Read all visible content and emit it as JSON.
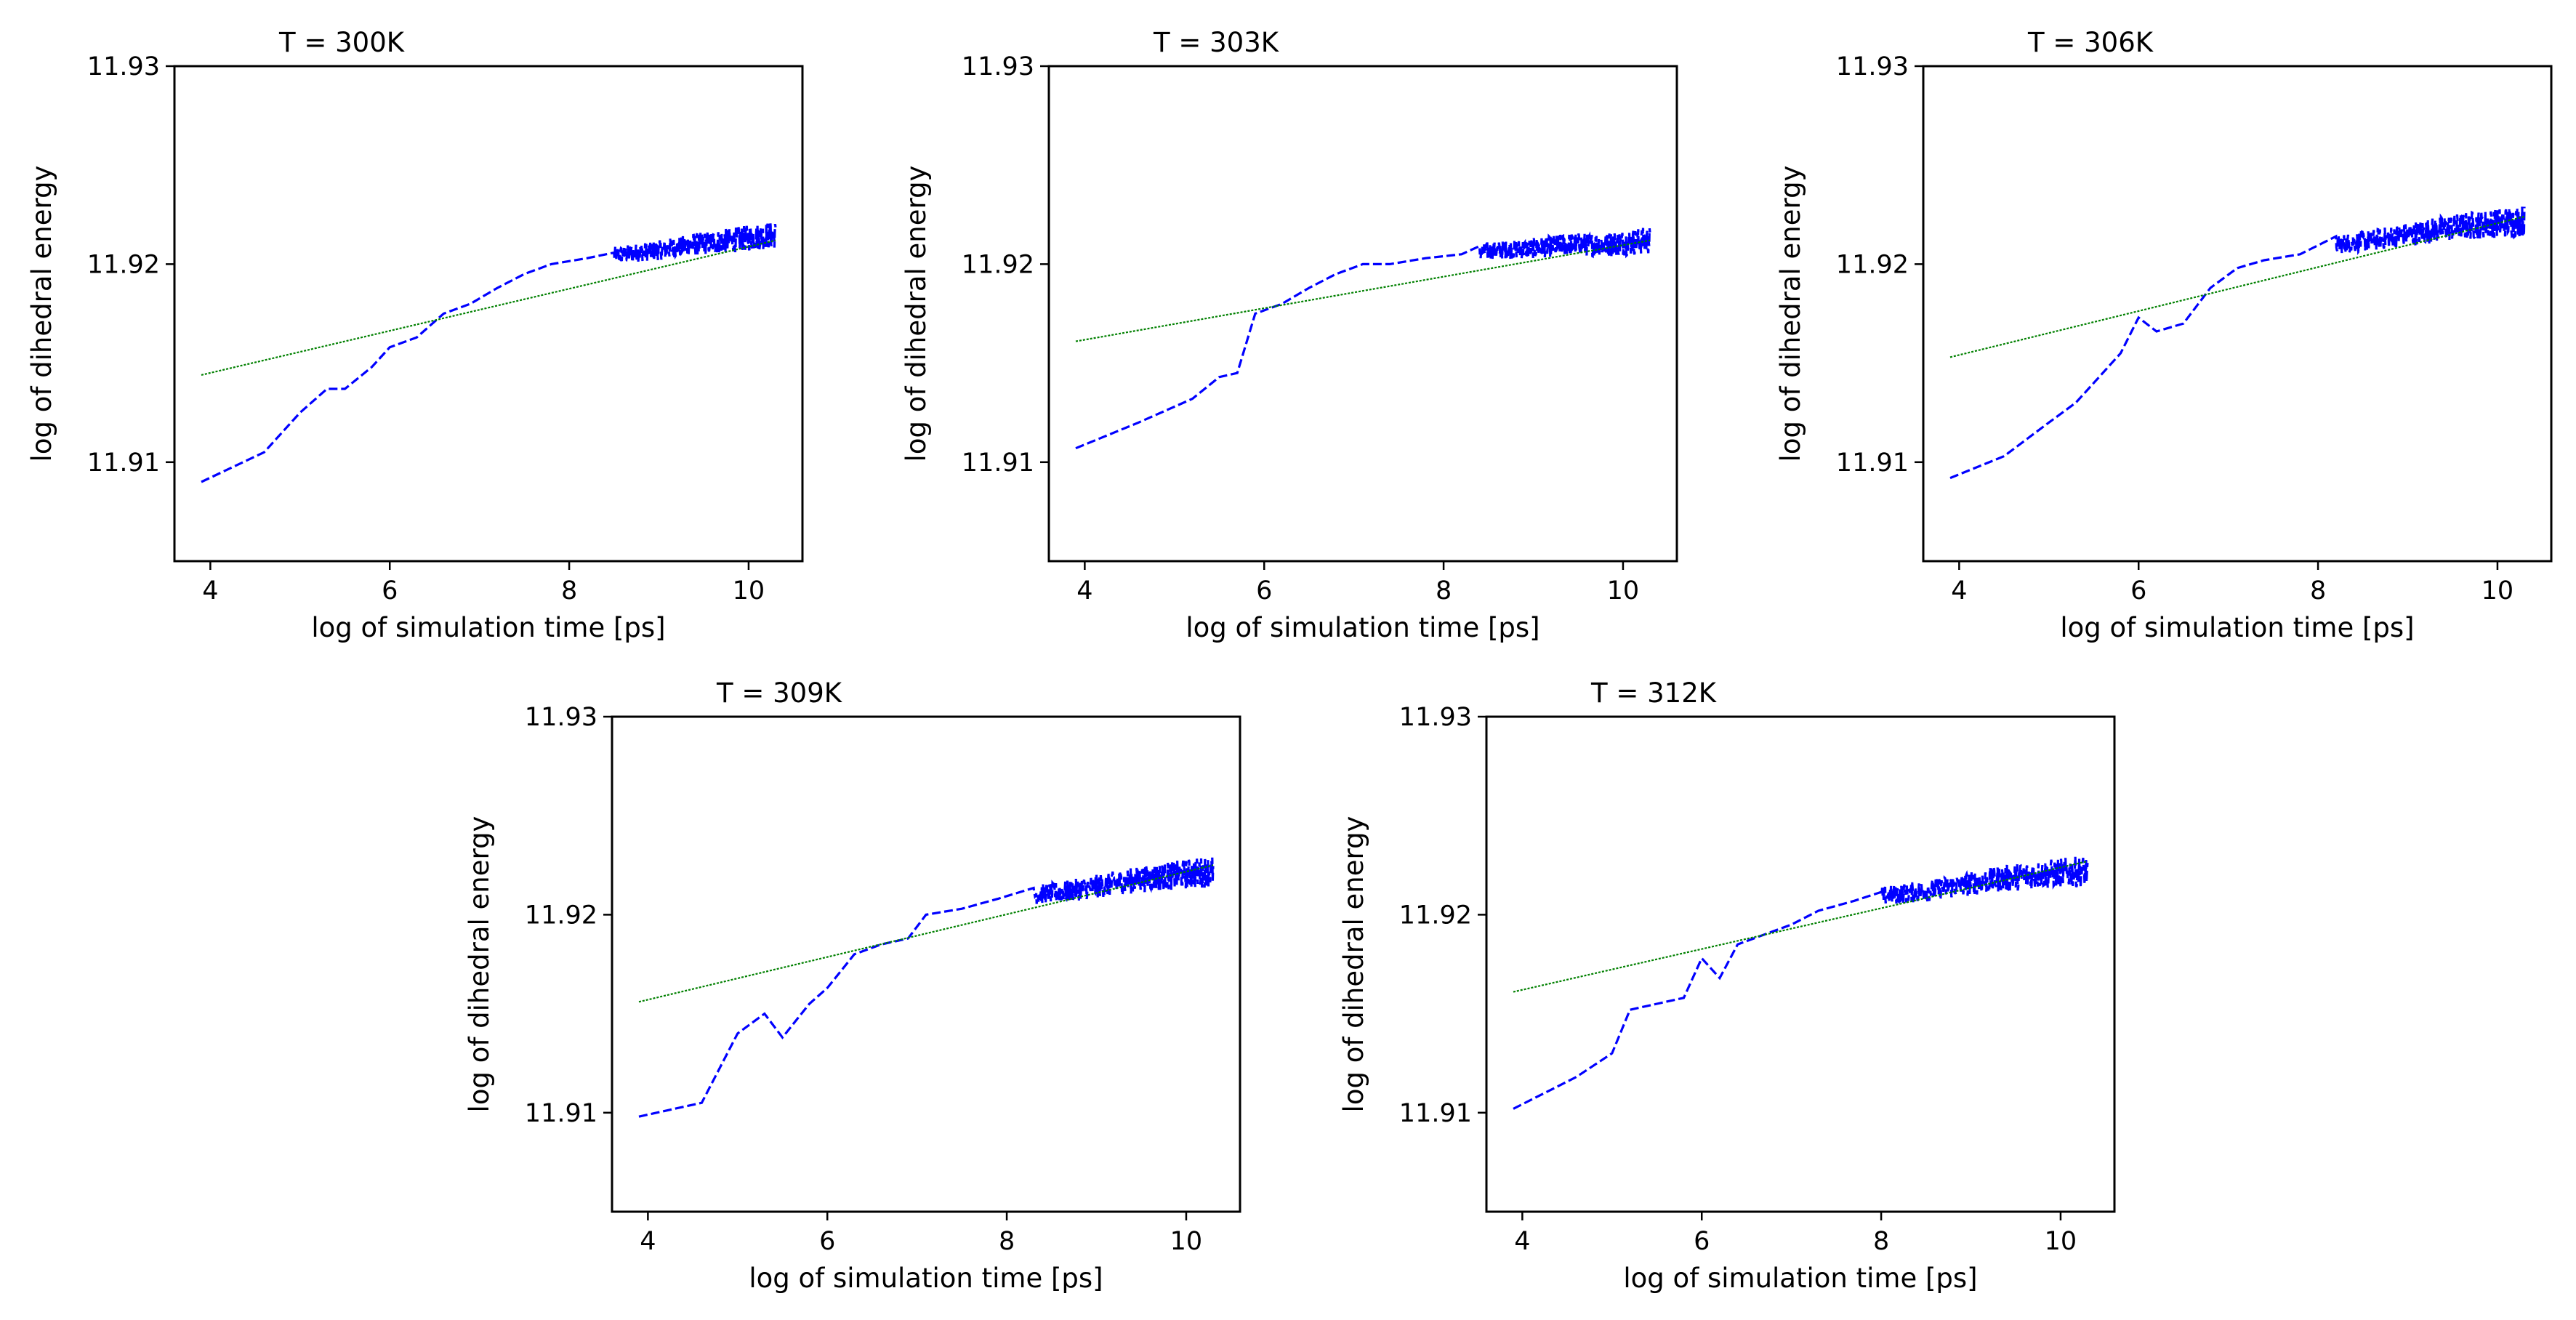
{
  "figure": {
    "background": "#ffffff"
  },
  "chart_data": [
    {
      "type": "line",
      "title": "T = 300K",
      "xlabel": "log of simulation time [ps]",
      "ylabel": "log of dihedral energy",
      "xlim": [
        3.6,
        10.6
      ],
      "ylim": [
        11.905,
        11.93
      ],
      "xticks": [
        4,
        6,
        8,
        10
      ],
      "xtick_labels": [
        "4",
        "6",
        "8",
        "10"
      ],
      "yticks": [
        11.91,
        11.92,
        11.93
      ],
      "ytick_labels": [
        "11.91",
        "11.92",
        "11.93"
      ],
      "series": [
        {
          "name": "data",
          "style": "dashed",
          "color": "#0000ff",
          "x": [
            3.9,
            4.6,
            5.0,
            5.3,
            5.5,
            5.8,
            6.0,
            6.3,
            6.6,
            6.9,
            7.2,
            7.5,
            7.8,
            8.2,
            8.6,
            9.0,
            9.4,
            9.8,
            10.3
          ],
          "y": [
            11.909,
            11.9105,
            11.9125,
            11.9137,
            11.9137,
            11.9148,
            11.9158,
            11.9163,
            11.9175,
            11.918,
            11.9188,
            11.9195,
            11.92,
            11.9203,
            11.9205,
            11.9207,
            11.921,
            11.9212,
            11.9215
          ],
          "noise_from_x": 8.5,
          "noise_amplitude": 0.0007
        },
        {
          "name": "fit",
          "style": "dotted",
          "color": "#008000",
          "x": [
            3.9,
            10.3
          ],
          "y": [
            11.9144,
            11.9212
          ]
        }
      ]
    },
    {
      "type": "line",
      "title": "T = 303K",
      "xlabel": "log of simulation time [ps]",
      "ylabel": "log of dihedral energy",
      "xlim": [
        3.6,
        10.6
      ],
      "ylim": [
        11.905,
        11.93
      ],
      "xticks": [
        4,
        6,
        8,
        10
      ],
      "xtick_labels": [
        "4",
        "6",
        "8",
        "10"
      ],
      "yticks": [
        11.91,
        11.92,
        11.93
      ],
      "ytick_labels": [
        "11.91",
        "11.92",
        "11.93"
      ],
      "series": [
        {
          "name": "data",
          "style": "dashed",
          "color": "#0000ff",
          "x": [
            3.9,
            4.6,
            5.2,
            5.5,
            5.7,
            5.9,
            6.2,
            6.5,
            6.8,
            7.1,
            7.4,
            7.8,
            8.2,
            8.6,
            9.0,
            9.4,
            9.8,
            10.3
          ],
          "y": [
            11.9107,
            11.912,
            11.9132,
            11.9143,
            11.9145,
            11.9175,
            11.918,
            11.9188,
            11.9195,
            11.92,
            11.92,
            11.9203,
            11.9205,
            11.9207,
            11.9208,
            11.921,
            11.921,
            11.9212
          ],
          "noise_from_x": 8.4,
          "noise_amplitude": 0.0007
        },
        {
          "name": "fit",
          "style": "dotted",
          "color": "#008000",
          "x": [
            3.9,
            10.3
          ],
          "y": [
            11.9161,
            11.9212
          ]
        }
      ]
    },
    {
      "type": "line",
      "title": "T = 306K",
      "xlabel": "log of simulation time [ps]",
      "ylabel": "log of dihedral energy",
      "xlim": [
        3.6,
        10.6
      ],
      "ylim": [
        11.905,
        11.93
      ],
      "xticks": [
        4,
        6,
        8,
        10
      ],
      "xtick_labels": [
        "4",
        "6",
        "8",
        "10"
      ],
      "yticks": [
        11.91,
        11.92,
        11.93
      ],
      "ytick_labels": [
        "11.91",
        "11.92",
        "11.93"
      ],
      "series": [
        {
          "name": "data",
          "style": "dashed",
          "color": "#0000ff",
          "x": [
            3.9,
            4.5,
            5.0,
            5.3,
            5.6,
            5.8,
            6.0,
            6.2,
            6.5,
            6.8,
            7.1,
            7.4,
            7.8,
            8.2,
            8.6,
            9.0,
            9.4,
            9.8,
            10.3
          ],
          "y": [
            11.9092,
            11.9103,
            11.912,
            11.913,
            11.9145,
            11.9155,
            11.9173,
            11.9166,
            11.917,
            11.9188,
            11.9198,
            11.9202,
            11.9205,
            11.921,
            11.9212,
            11.9215,
            11.9218,
            11.922,
            11.9222
          ],
          "noise_from_x": 8.2,
          "noise_amplitude": 0.0008
        },
        {
          "name": "fit",
          "style": "dotted",
          "color": "#008000",
          "x": [
            3.9,
            10.3
          ],
          "y": [
            11.9153,
            11.9224
          ]
        }
      ]
    },
    {
      "type": "line",
      "title": "T = 309K",
      "xlabel": "log of simulation time [ps]",
      "ylabel": "log of dihedral energy",
      "xlim": [
        3.6,
        10.6
      ],
      "ylim": [
        11.905,
        11.93
      ],
      "xticks": [
        4,
        6,
        8,
        10
      ],
      "xtick_labels": [
        "4",
        "6",
        "8",
        "10"
      ],
      "yticks": [
        11.91,
        11.92,
        11.93
      ],
      "ytick_labels": [
        "11.91",
        "11.92",
        "11.93"
      ],
      "series": [
        {
          "name": "data",
          "style": "dashed",
          "color": "#0000ff",
          "x": [
            3.9,
            4.6,
            5.0,
            5.3,
            5.5,
            5.8,
            6.0,
            6.3,
            6.6,
            6.9,
            7.1,
            7.5,
            7.9,
            8.3,
            8.7,
            9.1,
            9.5,
            9.9,
            10.3
          ],
          "y": [
            11.9098,
            11.9105,
            11.914,
            11.915,
            11.9138,
            11.9155,
            11.9163,
            11.918,
            11.9185,
            11.9188,
            11.92,
            11.9203,
            11.9208,
            11.921,
            11.9212,
            11.9215,
            11.9218,
            11.922,
            11.9222
          ],
          "noise_from_x": 8.3,
          "noise_amplitude": 0.0008
        },
        {
          "name": "fit",
          "style": "dotted",
          "color": "#008000",
          "x": [
            3.9,
            10.3
          ],
          "y": [
            11.9156,
            11.9225
          ]
        }
      ]
    },
    {
      "type": "line",
      "title": "T = 312K",
      "xlabel": "log of simulation time [ps]",
      "ylabel": "log of dihedral energy",
      "xlim": [
        3.6,
        10.6
      ],
      "ylim": [
        11.905,
        11.93
      ],
      "xticks": [
        4,
        6,
        8,
        10
      ],
      "xtick_labels": [
        "4",
        "6",
        "8",
        "10"
      ],
      "yticks": [
        11.91,
        11.92,
        11.93
      ],
      "ytick_labels": [
        "11.91",
        "11.92",
        "11.93"
      ],
      "series": [
        {
          "name": "data",
          "style": "dashed",
          "color": "#0000ff",
          "x": [
            3.9,
            4.6,
            5.0,
            5.2,
            5.5,
            5.8,
            6.0,
            6.2,
            6.4,
            6.7,
            7.0,
            7.3,
            7.7,
            8.1,
            8.5,
            8.9,
            9.3,
            9.7,
            10.3
          ],
          "y": [
            11.9102,
            11.9118,
            11.913,
            11.9152,
            11.9155,
            11.9158,
            11.9178,
            11.9168,
            11.9185,
            11.919,
            11.9195,
            11.9202,
            11.9207,
            11.921,
            11.9212,
            11.9215,
            11.9218,
            11.922,
            11.9222
          ],
          "noise_from_x": 8.0,
          "noise_amplitude": 0.0008
        },
        {
          "name": "fit",
          "style": "dotted",
          "color": "#008000",
          "x": [
            3.9,
            10.3
          ],
          "y": [
            11.9161,
            11.9227
          ]
        }
      ]
    }
  ]
}
